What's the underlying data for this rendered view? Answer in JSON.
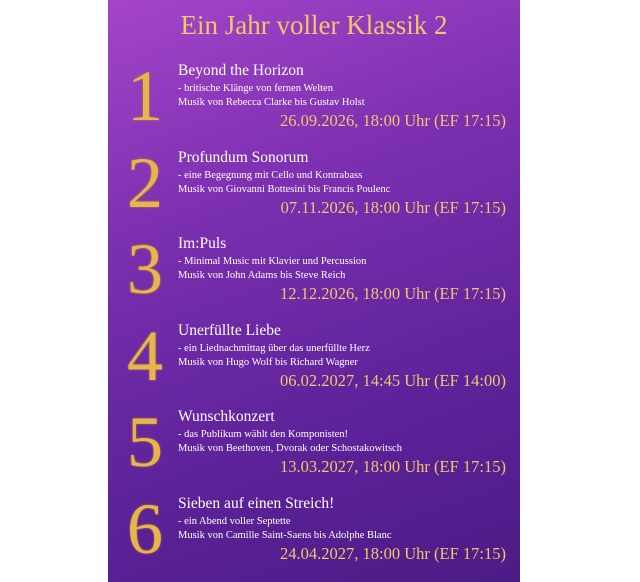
{
  "title": "Ein Jahr voller Klassik 2",
  "events": [
    {
      "number": "1",
      "title": "Beyond the Horizon",
      "subtitle": "- britische Klänge von fernen Welten",
      "composers": "Musik von Rebecca Clarke bis Gustav Holst",
      "date": "26.09.2026, 18:00 Uhr (EF 17:15)"
    },
    {
      "number": "2",
      "title": "Profundum Sonorum",
      "subtitle": "- eine Begegnung mit Cello und Kontrabass",
      "composers": "Musik von Giovanni Bottesini bis Francis Poulenc",
      "date": "07.11.2026, 18:00 Uhr (EF 17:15)"
    },
    {
      "number": "3",
      "title": "Im:Puls",
      "subtitle": "- Minimal Music mit Klavier und Percussion",
      "composers": "Musik von John Adams bis Steve Reich",
      "date": "12.12.2026, 18:00 Uhr (EF 17:15)"
    },
    {
      "number": "4",
      "title": "Unerfüllte Liebe",
      "subtitle": "- ein Liednachmittag über das unerfüllte Herz",
      "composers": "Musik von Hugo Wolf bis Richard Wagner",
      "date": "06.02.2027, 14:45 Uhr (EF 14:00)"
    },
    {
      "number": "5",
      "title": "Wunschkonzert",
      "subtitle": "- das Publikum wählt den Komponisten!",
      "composers": "Musik von Beethoven, Dvorak oder Schostakowitsch",
      "date": "13.03.2027, 18:00 Uhr (EF 17:15)"
    },
    {
      "number": "6",
      "title": "Sieben auf einen Streich!",
      "subtitle": "- ein Abend voller Septette",
      "composers": "Musik von Camille Saint-Saens bis Adolphe Blanc",
      "date": "24.04.2027, 18:00 Uhr (EF 17:15)"
    }
  ]
}
